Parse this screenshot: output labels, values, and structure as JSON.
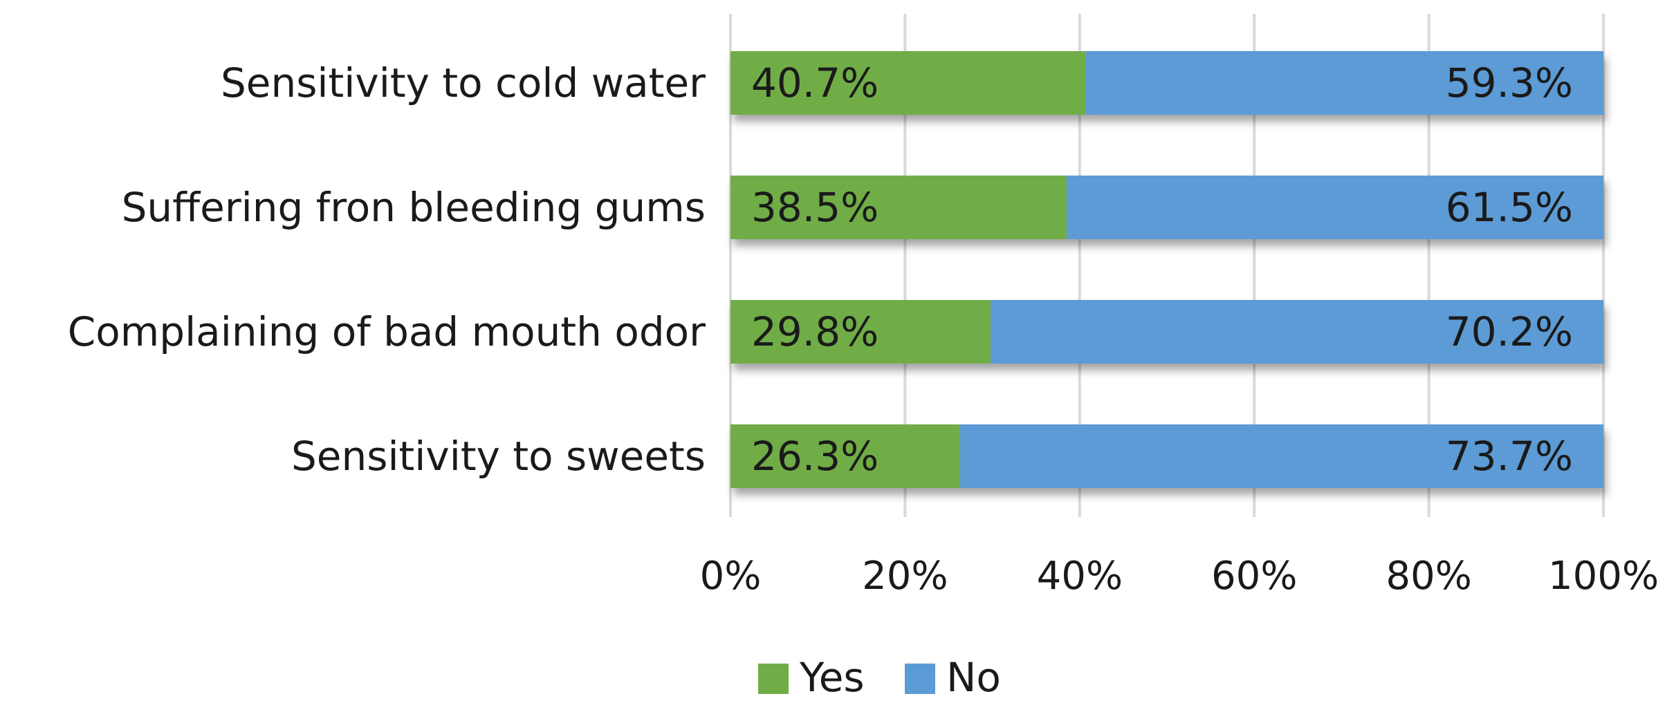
{
  "chart_data": {
    "type": "bar",
    "orientation": "horizontal",
    "stacked": true,
    "title": "",
    "xlabel": "",
    "ylabel": "",
    "xlim": [
      0,
      100
    ],
    "x_ticks": [
      "0%",
      "20%",
      "40%",
      "60%",
      "80%",
      "100%"
    ],
    "grid": "vertical",
    "legend_position": "bottom",
    "categories": [
      "Sensitivity to cold water",
      "Suffering fron bleeding gums",
      "Complaining of bad mouth odor",
      "Sensitivity to sweets"
    ],
    "series": [
      {
        "name": "Yes",
        "color": "#70AD47",
        "values": [
          40.7,
          38.5,
          29.8,
          26.3
        ],
        "labels": [
          "40.7%",
          "38.5%",
          "29.8%",
          "26.3%"
        ]
      },
      {
        "name": "No",
        "color": "#5B9BD5",
        "values": [
          59.3,
          61.5,
          70.2,
          73.7
        ],
        "labels": [
          "59.3%",
          "61.5%",
          "70.2%",
          "73.7%"
        ]
      }
    ]
  }
}
